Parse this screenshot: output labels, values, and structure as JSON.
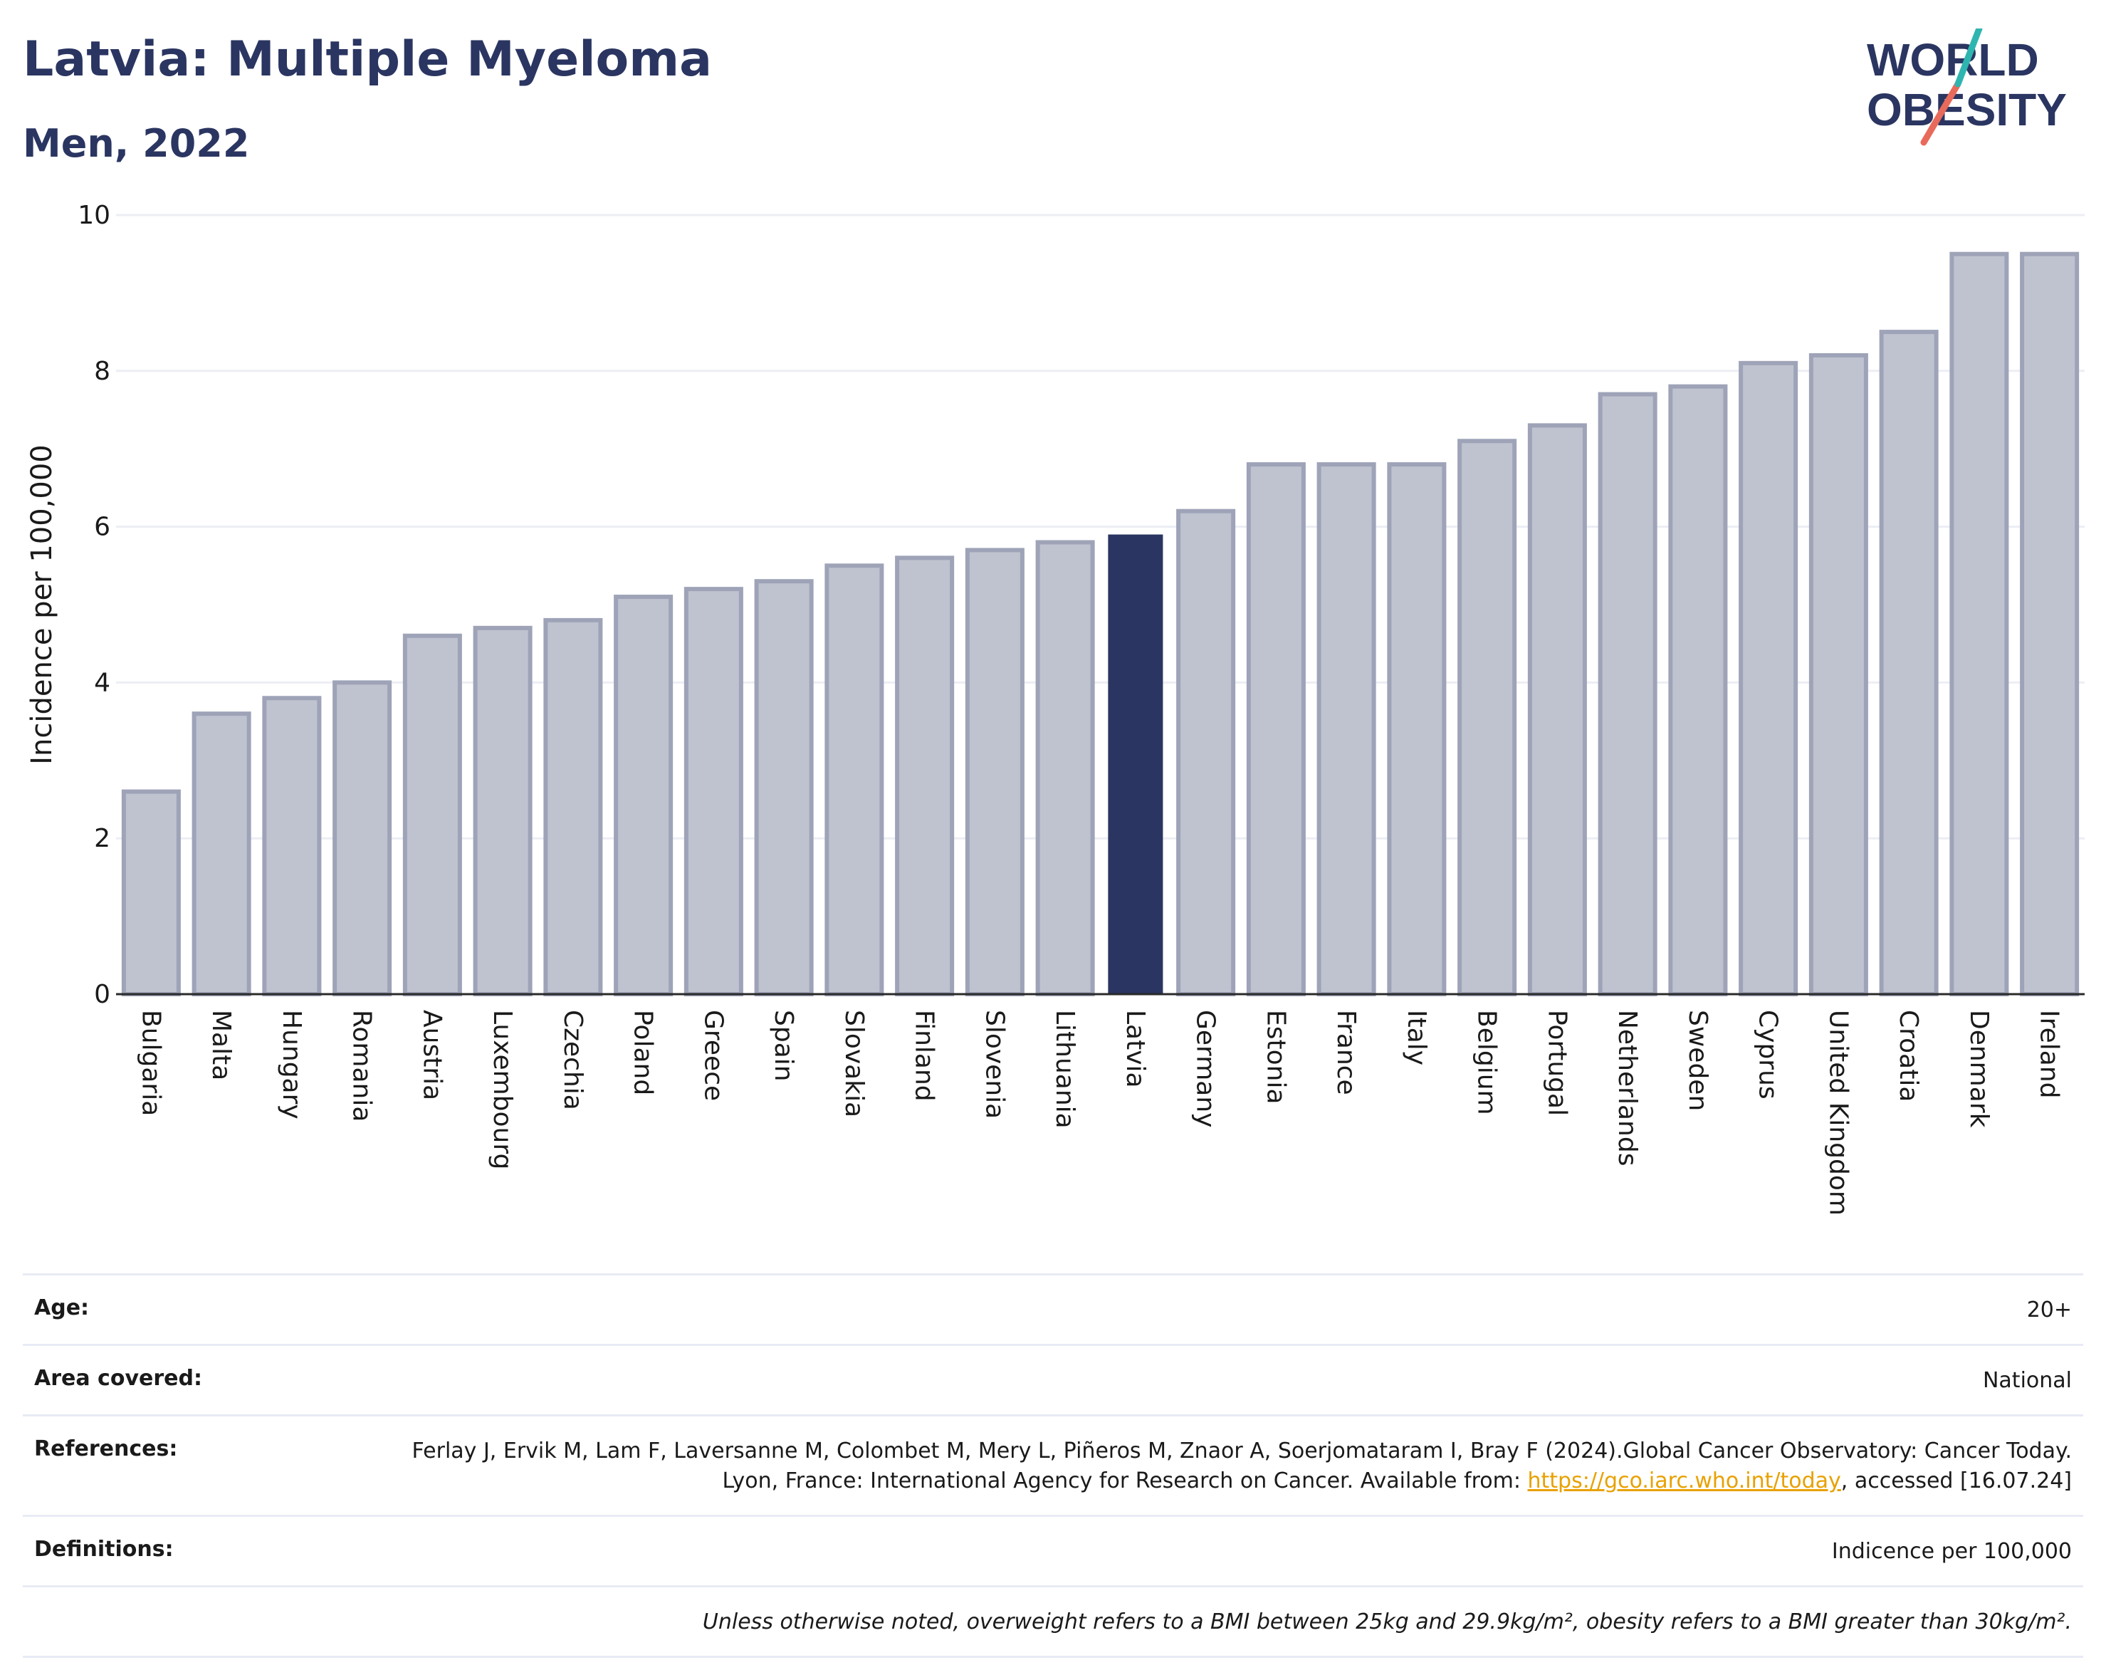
{
  "header": {
    "title": "Latvia: Multiple Myeloma",
    "subtitle": "Men, 2022"
  },
  "logo": {
    "line1": "WORLD",
    "line2": "OBESITY"
  },
  "chart_data": {
    "type": "bar",
    "title": "Latvia: Multiple Myeloma",
    "subtitle": "Men, 2022",
    "ylabel": "Incidence per 100,000",
    "xlabel": "",
    "ylim": [
      0,
      10
    ],
    "yticks": [
      0,
      2,
      4,
      6,
      8,
      10
    ],
    "grid": true,
    "highlight": "Latvia",
    "colors": {
      "bar": "#bfc3d0",
      "bar_edge": "#9ea3b8",
      "highlight": "#2a3561"
    },
    "categories": [
      "Bulgaria",
      "Malta",
      "Hungary",
      "Romania",
      "Austria",
      "Luxembourg",
      "Czechia",
      "Poland",
      "Greece",
      "Spain",
      "Slovakia",
      "Finland",
      "Slovenia",
      "Lithuania",
      "Latvia",
      "Germany",
      "Estonia",
      "France",
      "Italy",
      "Belgium",
      "Portugal",
      "Netherlands",
      "Sweden",
      "Cyprus",
      "United Kingdom",
      "Croatia",
      "Denmark",
      "Ireland"
    ],
    "values": [
      2.6,
      3.6,
      3.8,
      4.0,
      4.6,
      4.7,
      4.8,
      5.1,
      5.2,
      5.3,
      5.5,
      5.6,
      5.7,
      5.8,
      5.9,
      6.2,
      6.8,
      6.8,
      6.8,
      7.1,
      7.3,
      7.7,
      7.8,
      8.1,
      8.2,
      8.5,
      9.5,
      9.5
    ]
  },
  "info": {
    "age_label": "Age:",
    "age_value": "20+",
    "area_label": "Area covered:",
    "area_value": "National",
    "ref_label": "References:",
    "ref_text": "Ferlay J, Ervik M, Lam F, Laversanne M, Colombet M, Mery L, Piñeros M, Znaor A, Soerjomataram I, Bray F (2024).Global Cancer Observatory: Cancer Today. Lyon, France: International Agency for Research on Cancer. Available from: ",
    "ref_link": "https://gco.iarc.who.int/today",
    "ref_tail": ", accessed [16.07.24]",
    "def_label": "Definitions:",
    "def_value": "Indicence per 100,000",
    "note": "Unless otherwise noted, overweight refers to a BMI between 25kg and 29.9kg/m², obesity refers to a BMI greater than 30kg/m²."
  }
}
